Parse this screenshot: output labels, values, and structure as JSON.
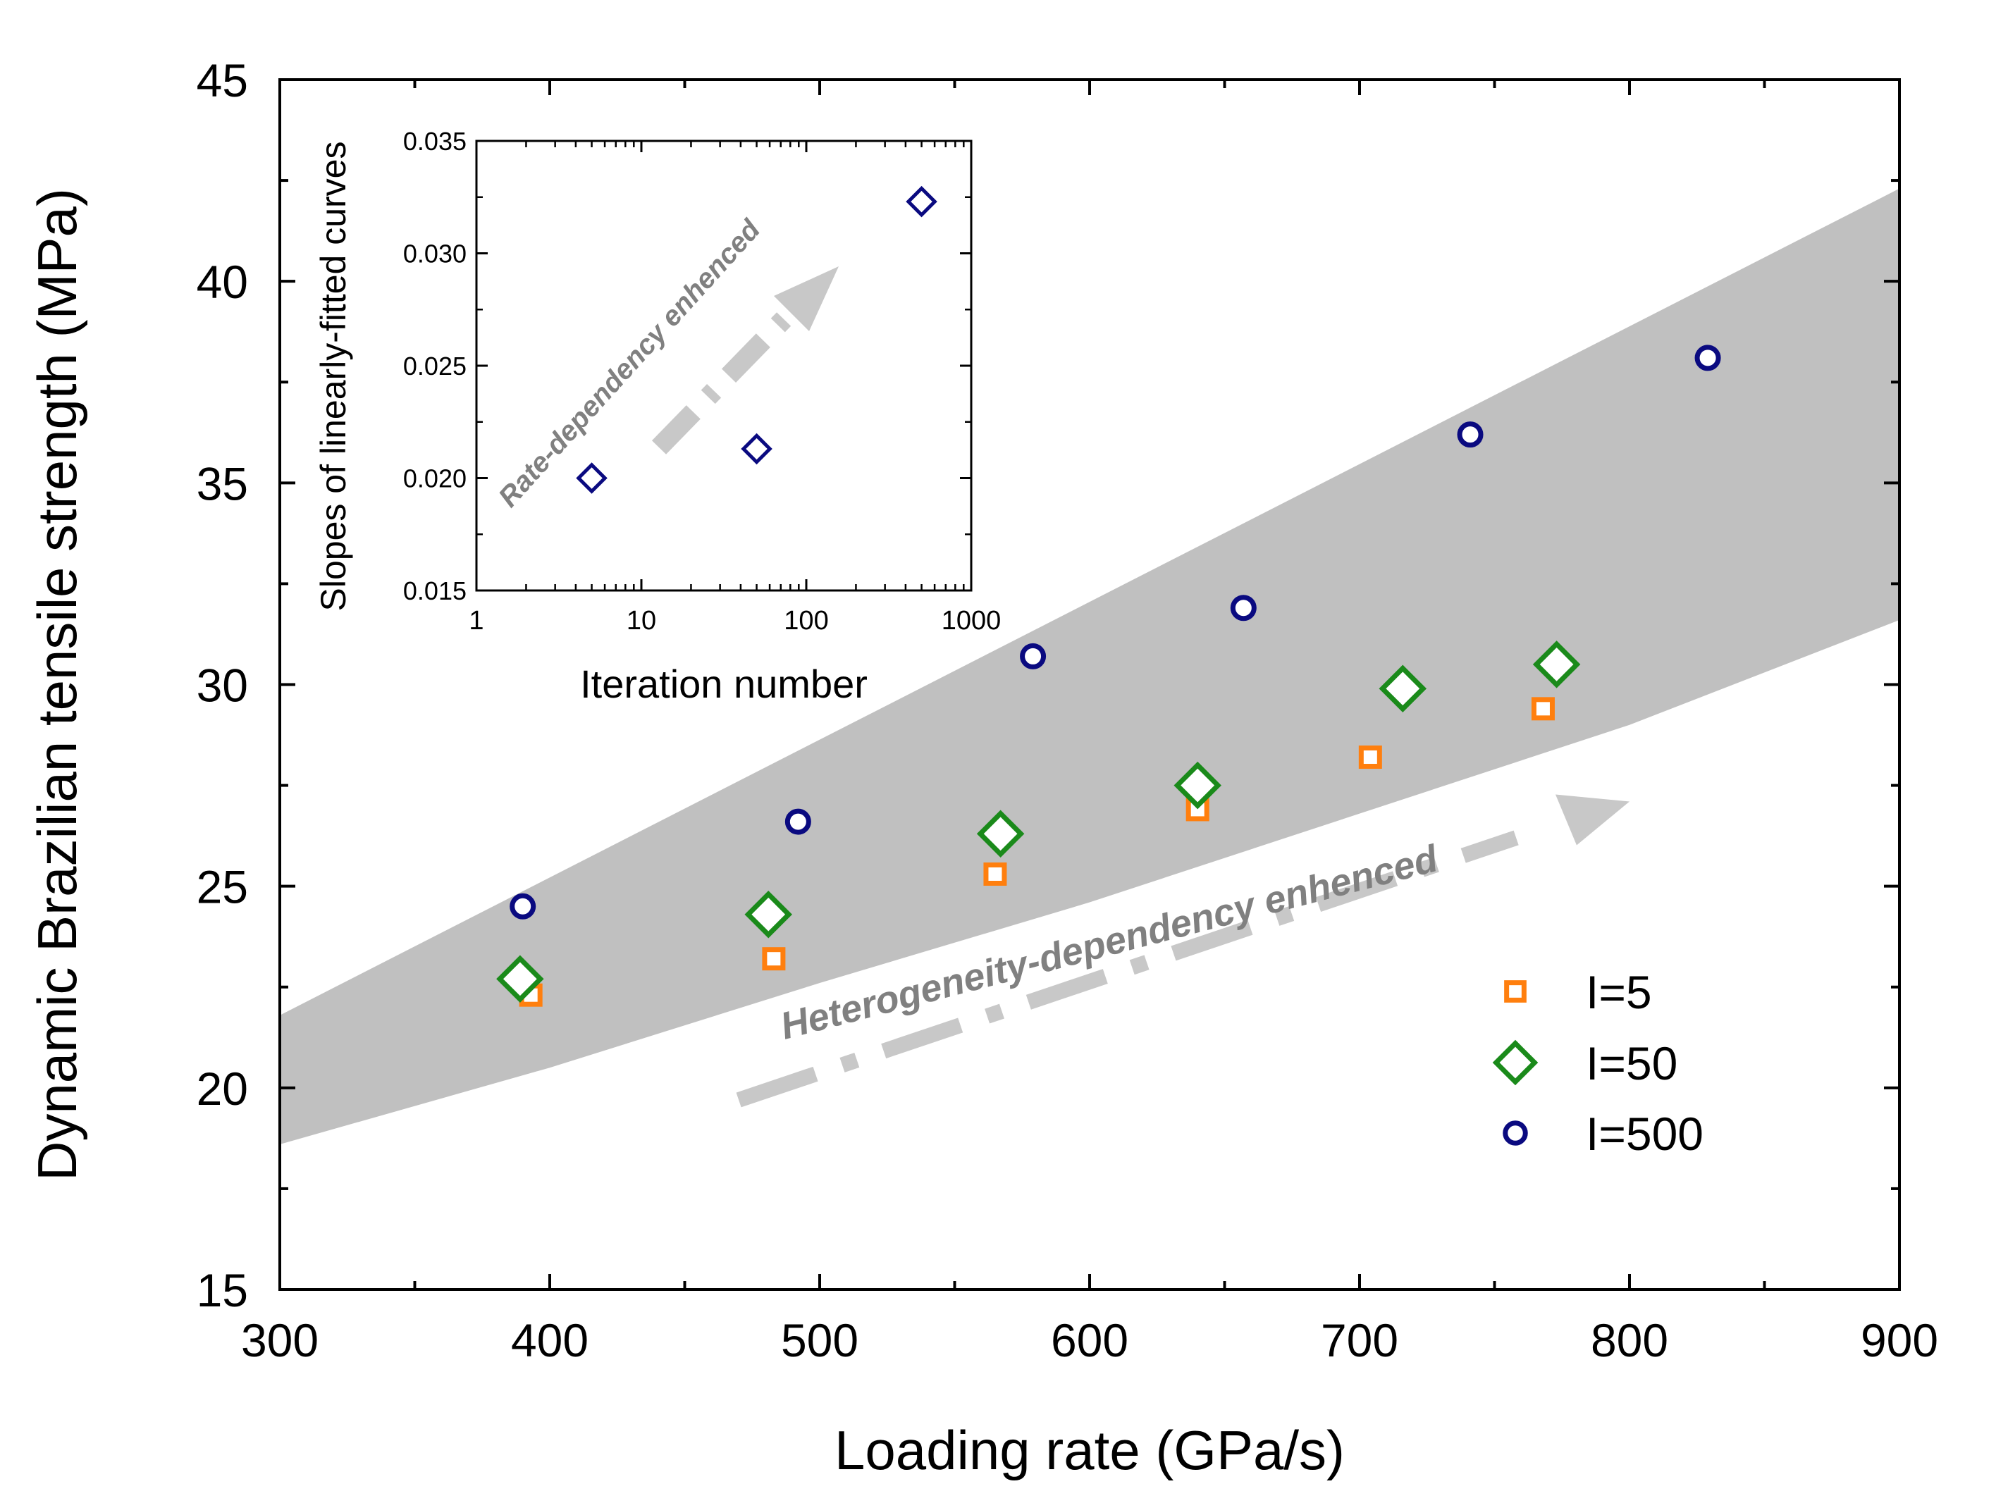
{
  "chart_data": [
    {
      "type": "scatter",
      "title": "",
      "xlabel": "Loading rate (GPa/s)",
      "ylabel": "Dynamic Brazilian tensile strength (MPa)",
      "xlim": [
        300,
        900
      ],
      "ylim": [
        15,
        45
      ],
      "x_ticks": [
        300,
        400,
        500,
        600,
        700,
        800,
        900
      ],
      "y_ticks": [
        15,
        20,
        25,
        30,
        35,
        40,
        45
      ],
      "legend_position": "lower-right",
      "series": [
        {
          "name": "I=5",
          "marker": "square",
          "color": "#FF7F0E",
          "points": [
            [
              393,
              22.3
            ],
            [
              483,
              23.2
            ],
            [
              565,
              25.3
            ],
            [
              640,
              26.9
            ],
            [
              704,
              28.2
            ],
            [
              768,
              29.4
            ]
          ]
        },
        {
          "name": "I=50",
          "marker": "diamond",
          "color": "#1A8A1A",
          "points": [
            [
              389,
              22.7
            ],
            [
              481,
              24.3
            ],
            [
              567,
              26.3
            ],
            [
              640,
              27.5
            ],
            [
              716,
              29.9
            ],
            [
              773,
              30.5
            ]
          ]
        },
        {
          "name": "I=500",
          "marker": "circle",
          "color": "#0A0A80",
          "points": [
            [
              390,
              24.5
            ],
            [
              492,
              26.6
            ],
            [
              579,
              30.7
            ],
            [
              657,
              31.9
            ],
            [
              741,
              36.2
            ],
            [
              829,
              38.1
            ]
          ]
        }
      ],
      "band": {
        "color": "#C0C0C0",
        "upper": [
          [
            300,
            21.8
          ],
          [
            900,
            42.3
          ]
        ],
        "lower": [
          [
            300,
            18.6
          ],
          [
            400,
            20.5
          ],
          [
            500,
            22.6
          ],
          [
            600,
            24.6
          ],
          [
            700,
            26.8
          ],
          [
            800,
            29.0
          ],
          [
            900,
            31.6
          ]
        ]
      },
      "annotation": {
        "text": "Heterogeneity-dependency enhenced",
        "color": "#808080"
      }
    },
    {
      "type": "scatter",
      "title": "",
      "xlabel": "Iteration number",
      "ylabel": "Slopes of linearly-fitted curves",
      "x_scale": "log",
      "xlim": [
        1,
        1000
      ],
      "ylim": [
        0.015,
        0.035
      ],
      "x_ticks": [
        1,
        10,
        100,
        1000
      ],
      "y_ticks": [
        "0.015",
        "0.020",
        "0.025",
        "0.030",
        "0.035"
      ],
      "series": [
        {
          "marker": "diamond",
          "color": "#0A0A80",
          "points": [
            [
              5,
              0.02
            ],
            [
              50,
              0.0213
            ],
            [
              500,
              0.0323
            ]
          ]
        }
      ],
      "annotation": {
        "text": "Rate-dependency enhenced",
        "color": "#808080"
      }
    }
  ],
  "legend": [
    {
      "label": "I=5"
    },
    {
      "label": "I=50"
    },
    {
      "label": "I=500"
    }
  ]
}
